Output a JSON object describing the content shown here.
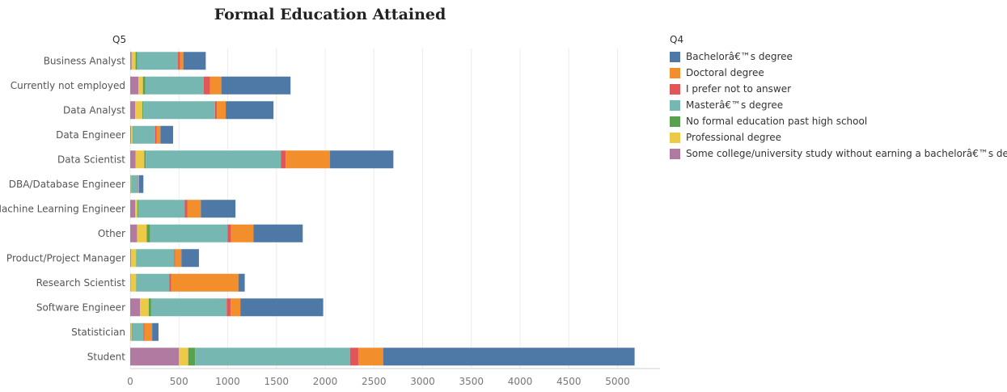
{
  "chart_data": {
    "type": "bar",
    "orientation": "horizontal",
    "stacked": true,
    "title": "Formal Education Attained",
    "ylabel": "Q5",
    "legend_title": "Q4",
    "legend_position": "right",
    "xlim": [
      0,
      5400
    ],
    "x_ticks": [
      0,
      500,
      1000,
      1500,
      2000,
      2500,
      3000,
      3500,
      4000,
      4500,
      5000
    ],
    "grid": "vertical",
    "categories": [
      "Business Analyst",
      "Currently not employed",
      "Data Analyst",
      "Data Engineer",
      "Data Scientist",
      "DBA/Database Engineer",
      "Machine Learning Engineer",
      "Other",
      "Product/Project Manager",
      "Research Scientist",
      "Software Engineer",
      "Statistician",
      "Student"
    ],
    "stack_order": [
      "Some college/university study without earning a bachelorâ€™s degree",
      "Professional degree",
      "No formal education past high school",
      "Masterâ€™s degree",
      "I prefer not to answer",
      "Doctoral degree",
      "Bachelorâ€™s degree"
    ],
    "series": [
      {
        "name": "Bachelorâ€™s degree",
        "color": "#4e79a7",
        "values": [
          230,
          710,
          490,
          130,
          650,
          45,
          355,
          505,
          180,
          65,
          850,
          65,
          2580
        ]
      },
      {
        "name": "Doctoral degree",
        "color": "#f28e2b",
        "values": [
          35,
          115,
          90,
          40,
          455,
          5,
          140,
          230,
          65,
          690,
          100,
          80,
          255
        ]
      },
      {
        "name": "I prefer not to answer",
        "color": "#e15759",
        "values": [
          20,
          65,
          20,
          15,
          50,
          5,
          25,
          35,
          10,
          20,
          40,
          10,
          85
        ]
      },
      {
        "name": "Masterâ€™s degree",
        "color": "#76b7b2",
        "values": [
          420,
          600,
          735,
          225,
          1385,
          65,
          475,
          795,
          385,
          335,
          775,
          115,
          1590
        ]
      },
      {
        "name": "No formal education past high school",
        "color": "#59a14f",
        "values": [
          15,
          25,
          10,
          5,
          15,
          5,
          10,
          35,
          5,
          5,
          25,
          5,
          70
        ]
      },
      {
        "name": "Professional degree",
        "color": "#edc948",
        "values": [
          40,
          45,
          75,
          15,
          90,
          5,
          25,
          100,
          50,
          55,
          90,
          10,
          95
        ]
      },
      {
        "name": "Some college/university study without earning a bachelorâ€™s degree",
        "color": "#b07aa1",
        "values": [
          15,
          85,
          50,
          10,
          55,
          5,
          50,
          70,
          10,
          5,
          100,
          5,
          500
        ]
      }
    ]
  }
}
